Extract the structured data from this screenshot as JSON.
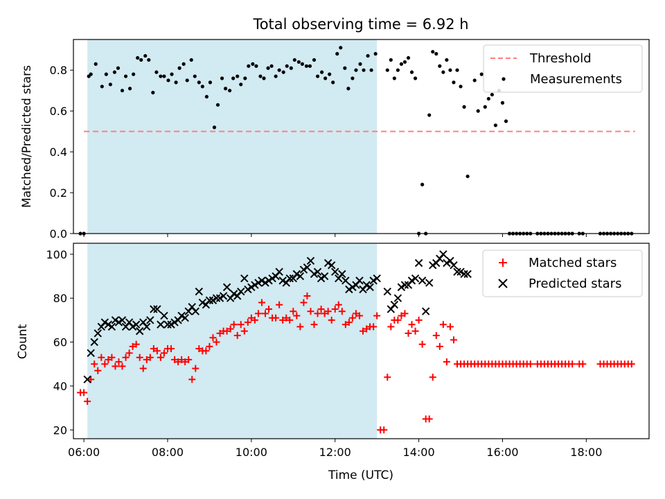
{
  "chart_data": [
    {
      "type": "scatter",
      "title": "Total observing time = 6.92 h",
      "xlabel": "",
      "ylabel": "Matched/Predicted stars",
      "xlim": [
        "05:45",
        "19:30"
      ],
      "ylim": [
        0,
        0.95
      ],
      "yticks": [
        0.0,
        0.2,
        0.4,
        0.6,
        0.8
      ],
      "ytick_labels": [
        "0.0",
        "0.2",
        "0.4",
        "0.6",
        "0.8"
      ],
      "shaded_interval": [
        "06:05",
        "13:00"
      ],
      "shade_color": "#add8e6",
      "threshold": {
        "name": "Threshold",
        "value": 0.5,
        "x_range": [
          "06:00",
          "19:10"
        ],
        "color": "#ff7f7f"
      },
      "legend": {
        "placement": "top-right",
        "entries": [
          "Threshold",
          "Measurements"
        ]
      },
      "series": [
        {
          "name": "Measurements",
          "marker": "dot",
          "color": "#000000",
          "x": [
            "05:55",
            "06:00",
            "06:07",
            "06:10",
            "06:17",
            "06:26",
            "06:32",
            "06:38",
            "06:44",
            "06:49",
            "06:55",
            "07:00",
            "07:06",
            "07:11",
            "07:17",
            "07:22",
            "07:28",
            "07:33",
            "07:39",
            "07:44",
            "07:50",
            "07:55",
            "08:01",
            "08:06",
            "08:12",
            "08:17",
            "08:23",
            "08:28",
            "08:34",
            "08:39",
            "08:45",
            "08:50",
            "08:56",
            "09:01",
            "09:07",
            "09:12",
            "09:18",
            "09:23",
            "09:29",
            "09:34",
            "09:40",
            "09:45",
            "09:51",
            "09:56",
            "10:02",
            "10:07",
            "10:13",
            "10:18",
            "10:24",
            "10:29",
            "10:35",
            "10:40",
            "10:46",
            "10:51",
            "10:57",
            "11:02",
            "11:08",
            "11:13",
            "11:19",
            "11:24",
            "11:30",
            "11:35",
            "11:41",
            "11:46",
            "11:52",
            "11:57",
            "12:03",
            "12:08",
            "12:14",
            "12:19",
            "12:25",
            "12:30",
            "12:36",
            "12:41",
            "12:47",
            "12:52",
            "12:58",
            "13:15",
            "13:20",
            "13:25",
            "13:30",
            "13:35",
            "13:40",
            "13:45",
            "13:50",
            "13:55",
            "14:00",
            "14:05",
            "14:10",
            "14:15",
            "14:20",
            "14:25",
            "14:30",
            "14:35",
            "14:40",
            "14:45",
            "14:50",
            "14:55",
            "15:00",
            "15:05",
            "15:10",
            "15:20",
            "15:25",
            "15:30",
            "15:35",
            "15:40",
            "15:45",
            "15:50",
            "15:55",
            "16:00",
            "16:05",
            "16:10",
            "16:15",
            "16:20",
            "16:25",
            "16:30",
            "16:35",
            "16:40",
            "16:50",
            "16:55",
            "17:00",
            "17:05",
            "17:10",
            "17:15",
            "17:20",
            "17:25",
            "17:30",
            "17:35",
            "17:40",
            "17:50",
            "17:55",
            "18:20",
            "18:25",
            "18:30",
            "18:35",
            "18:40",
            "18:45",
            "18:50",
            "18:55",
            "19:00",
            "19:05"
          ],
          "y": [
            0.0,
            0.0,
            0.77,
            0.78,
            0.83,
            0.72,
            0.78,
            0.73,
            0.79,
            0.81,
            0.7,
            0.77,
            0.71,
            0.78,
            0.86,
            0.85,
            0.87,
            0.85,
            0.69,
            0.79,
            0.77,
            0.77,
            0.75,
            0.78,
            0.74,
            0.81,
            0.83,
            0.75,
            0.85,
            0.77,
            0.74,
            0.72,
            0.67,
            0.74,
            0.52,
            0.63,
            0.76,
            0.71,
            0.7,
            0.76,
            0.77,
            0.73,
            0.76,
            0.82,
            0.83,
            0.82,
            0.77,
            0.76,
            0.81,
            0.82,
            0.77,
            0.8,
            0.79,
            0.82,
            0.81,
            0.85,
            0.84,
            0.83,
            0.82,
            0.82,
            0.85,
            0.77,
            0.79,
            0.76,
            0.78,
            0.74,
            0.88,
            0.91,
            0.81,
            0.71,
            0.76,
            0.8,
            0.83,
            0.8,
            0.87,
            0.8,
            0.88,
            0.8,
            0.85,
            0.76,
            0.8,
            0.83,
            0.84,
            0.86,
            0.79,
            0.76,
            0.0,
            0.24,
            0.0,
            0.58,
            0.89,
            0.88,
            0.82,
            0.79,
            0.85,
            0.8,
            0.74,
            0.8,
            0.72,
            0.62,
            0.28,
            0.75,
            0.6,
            0.78,
            0.62,
            0.66,
            0.68,
            0.53,
            0.7,
            0.64,
            0.55,
            0.0,
            0.0,
            0.0,
            0.0,
            0.0,
            0.0,
            0.0,
            0.0,
            0.0,
            0.0,
            0.0,
            0.0,
            0.0,
            0.0,
            0.0,
            0.0,
            0.0,
            0.0,
            0.0,
            0.0,
            0.0,
            0.0,
            0.0,
            0.0,
            0.0,
            0.0,
            0.0,
            0.0,
            0.0,
            0.0
          ]
        }
      ]
    },
    {
      "type": "scatter",
      "title": "",
      "xlabel": "Time (UTC)",
      "ylabel": "Count",
      "xlim": [
        "05:45",
        "19:30"
      ],
      "ylim": [
        16,
        105
      ],
      "yticks": [
        20,
        40,
        60,
        80,
        100
      ],
      "ytick_labels": [
        "20",
        "40",
        "60",
        "80",
        "100"
      ],
      "xticks": [
        "06:00",
        "08:00",
        "10:00",
        "12:00",
        "14:00",
        "16:00",
        "18:00"
      ],
      "shaded_interval": [
        "06:05",
        "13:00"
      ],
      "shade_color": "#add8e6",
      "legend": {
        "placement": "top-right",
        "entries": [
          "Matched stars",
          "Predicted stars"
        ]
      },
      "series": [
        {
          "name": "Matched stars",
          "marker": "plus",
          "color": "#ff0000",
          "x": [
            "05:55",
            "06:00",
            "06:05",
            "06:10",
            "06:15",
            "06:20",
            "06:25",
            "06:30",
            "06:35",
            "06:40",
            "06:45",
            "06:50",
            "06:55",
            "07:00",
            "07:05",
            "07:10",
            "07:15",
            "07:20",
            "07:25",
            "07:30",
            "07:35",
            "07:40",
            "07:45",
            "07:50",
            "07:55",
            "08:00",
            "08:05",
            "08:10",
            "08:15",
            "08:20",
            "08:25",
            "08:30",
            "08:35",
            "08:40",
            "08:45",
            "08:50",
            "08:55",
            "09:00",
            "09:05",
            "09:10",
            "09:15",
            "09:20",
            "09:25",
            "09:30",
            "09:35",
            "09:40",
            "09:45",
            "09:50",
            "09:55",
            "10:00",
            "10:05",
            "10:10",
            "10:15",
            "10:20",
            "10:25",
            "10:30",
            "10:35",
            "10:40",
            "10:45",
            "10:50",
            "10:55",
            "11:00",
            "11:05",
            "11:10",
            "11:15",
            "11:20",
            "11:25",
            "11:30",
            "11:35",
            "11:40",
            "11:45",
            "11:50",
            "11:55",
            "12:00",
            "12:05",
            "12:10",
            "12:15",
            "12:20",
            "12:25",
            "12:30",
            "12:35",
            "12:40",
            "12:45",
            "12:50",
            "12:55",
            "13:00",
            "13:05",
            "13:10",
            "13:15",
            "13:20",
            "13:25",
            "13:30",
            "13:35",
            "13:40",
            "13:45",
            "13:50",
            "13:55",
            "14:00",
            "14:05",
            "14:10",
            "14:15",
            "14:20",
            "14:25",
            "14:30",
            "14:35",
            "14:40",
            "14:45",
            "14:50",
            "14:55",
            "15:00",
            "15:05",
            "15:10",
            "15:15",
            "15:20",
            "15:25",
            "15:30",
            "15:35",
            "15:40",
            "15:45",
            "15:50",
            "15:55",
            "16:00",
            "16:05",
            "16:10",
            "16:15",
            "16:20",
            "16:25",
            "16:30",
            "16:35",
            "16:40",
            "16:50",
            "16:55",
            "17:00",
            "17:05",
            "17:10",
            "17:15",
            "17:20",
            "17:25",
            "17:30",
            "17:35",
            "17:40",
            "17:50",
            "17:55",
            "18:20",
            "18:25",
            "18:30",
            "18:35",
            "18:40",
            "18:45",
            "18:50",
            "18:55",
            "19:00",
            "19:05"
          ],
          "y": [
            37,
            37,
            33,
            43,
            50,
            47,
            53,
            50,
            52,
            53,
            49,
            51,
            49,
            53,
            55,
            58,
            59,
            53,
            48,
            52,
            53,
            57,
            56,
            53,
            55,
            57,
            57,
            52,
            51,
            52,
            51,
            52,
            43,
            48,
            57,
            56,
            56,
            58,
            62,
            60,
            64,
            65,
            65,
            66,
            68,
            63,
            68,
            65,
            69,
            71,
            70,
            73,
            78,
            73,
            75,
            71,
            71,
            77,
            70,
            71,
            70,
            74,
            72,
            67,
            78,
            81,
            74,
            68,
            73,
            75,
            73,
            74,
            70,
            75,
            77,
            74,
            68,
            69,
            71,
            73,
            72,
            65,
            66,
            67,
            67,
            72,
            20,
            20,
            44,
            67,
            70,
            70,
            72,
            73,
            64,
            68,
            65,
            70,
            59,
            25,
            25,
            44,
            63,
            58,
            68,
            51,
            67,
            61,
            50,
            50,
            50,
            50,
            50,
            50,
            50,
            50,
            50,
            50,
            50,
            50,
            50,
            50,
            50,
            50,
            50,
            50,
            50,
            50,
            50,
            50,
            50,
            50,
            50,
            50,
            50,
            50,
            50,
            50,
            50,
            50,
            50,
            50,
            50,
            50,
            50,
            50,
            50,
            50,
            50,
            50,
            50,
            50,
            50
          ]
        },
        {
          "name": "Predicted stars",
          "marker": "x",
          "color": "#000000",
          "x": [
            "06:05",
            "06:10",
            "06:15",
            "06:20",
            "06:25",
            "06:30",
            "06:35",
            "06:40",
            "06:45",
            "06:50",
            "06:55",
            "07:00",
            "07:05",
            "07:10",
            "07:15",
            "07:20",
            "07:25",
            "07:30",
            "07:35",
            "07:40",
            "07:45",
            "07:50",
            "07:55",
            "08:00",
            "08:05",
            "08:10",
            "08:15",
            "08:20",
            "08:25",
            "08:30",
            "08:35",
            "08:40",
            "08:45",
            "08:50",
            "08:55",
            "09:00",
            "09:05",
            "09:10",
            "09:15",
            "09:20",
            "09:25",
            "09:30",
            "09:35",
            "09:40",
            "09:45",
            "09:50",
            "09:55",
            "10:00",
            "10:05",
            "10:10",
            "10:15",
            "10:20",
            "10:25",
            "10:30",
            "10:35",
            "10:40",
            "10:45",
            "10:50",
            "10:55",
            "11:00",
            "11:05",
            "11:10",
            "11:15",
            "11:20",
            "11:25",
            "11:30",
            "11:35",
            "11:40",
            "11:45",
            "11:50",
            "11:55",
            "12:00",
            "12:05",
            "12:10",
            "12:15",
            "12:20",
            "12:25",
            "12:30",
            "12:35",
            "12:40",
            "12:45",
            "12:50",
            "12:55",
            "13:00",
            "13:15",
            "13:20",
            "13:25",
            "13:30",
            "13:35",
            "13:40",
            "13:45",
            "13:50",
            "13:55",
            "14:00",
            "14:05",
            "14:10",
            "14:15",
            "14:20",
            "14:25",
            "14:30",
            "14:35",
            "14:40",
            "14:45",
            "14:50",
            "14:55",
            "15:00",
            "15:05",
            "15:10"
          ],
          "y": [
            43,
            55,
            60,
            64,
            67,
            69,
            68,
            67,
            70,
            69,
            70,
            67,
            69,
            67,
            68,
            65,
            69,
            67,
            70,
            75,
            75,
            68,
            72,
            68,
            68,
            69,
            70,
            72,
            71,
            74,
            76,
            74,
            83,
            78,
            77,
            79,
            79,
            80,
            80,
            81,
            85,
            80,
            82,
            81,
            83,
            89,
            84,
            85,
            86,
            87,
            88,
            87,
            88,
            89,
            90,
            92,
            88,
            87,
            89,
            89,
            91,
            90,
            93,
            94,
            97,
            91,
            92,
            89,
            90,
            96,
            95,
            92,
            89,
            91,
            88,
            84,
            85,
            86,
            88,
            84,
            86,
            85,
            88,
            89,
            83,
            75,
            77,
            80,
            85,
            86,
            86,
            88,
            89,
            96,
            88,
            74,
            87,
            95,
            96,
            98,
            100,
            96,
            97,
            95,
            92,
            92,
            91,
            91
          ]
        }
      ]
    }
  ]
}
